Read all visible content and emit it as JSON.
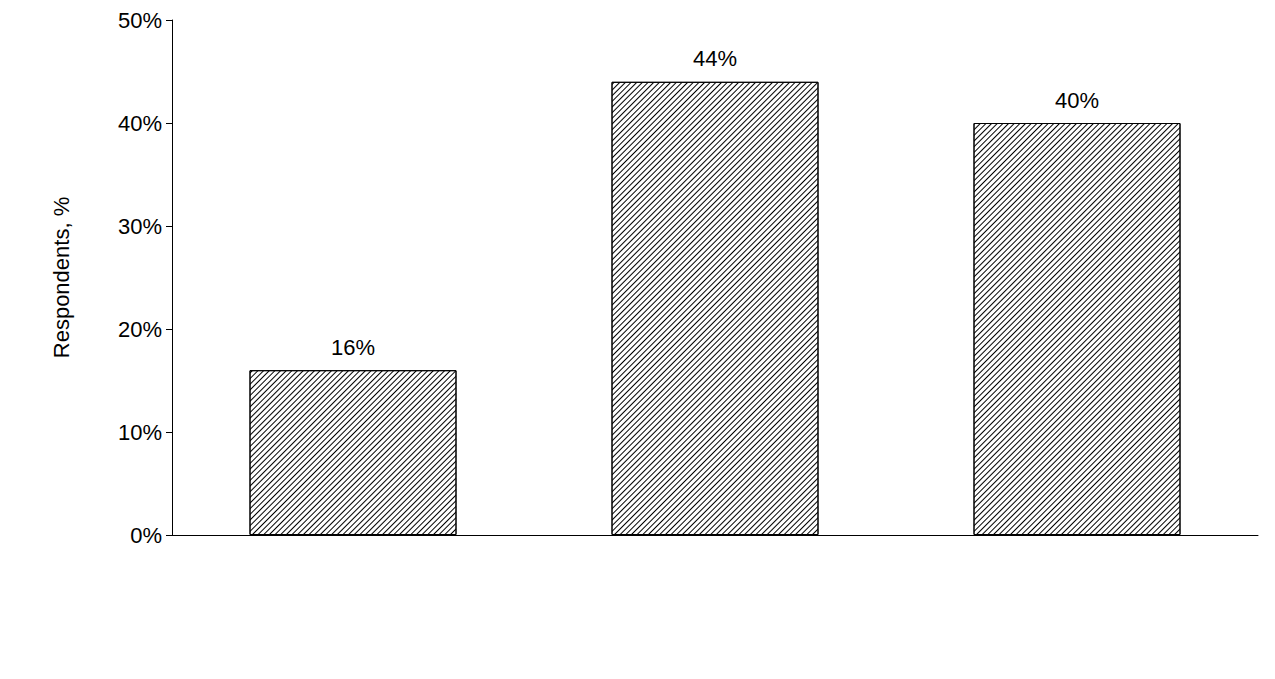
{
  "chart_data": {
    "type": "bar",
    "y_label": "Respondents, %",
    "categories": [
      null,
      null,
      null
    ],
    "values": [
      16,
      44,
      40
    ],
    "value_labels": [
      "16%",
      "44%",
      "40%"
    ],
    "color": "#ffffff",
    "ylim": [
      0,
      50
    ],
    "yticks": [
      {
        "value": 0,
        "label": "0%"
      },
      {
        "value": 10,
        "label": "10%"
      },
      {
        "value": 20,
        "label": "20%"
      },
      {
        "value": 30,
        "label": "30%"
      },
      {
        "value": 40,
        "label": "40%"
      },
      {
        "value": 50,
        "label": "50%"
      }
    ],
    "data_labels": true,
    "grid": false
  }
}
